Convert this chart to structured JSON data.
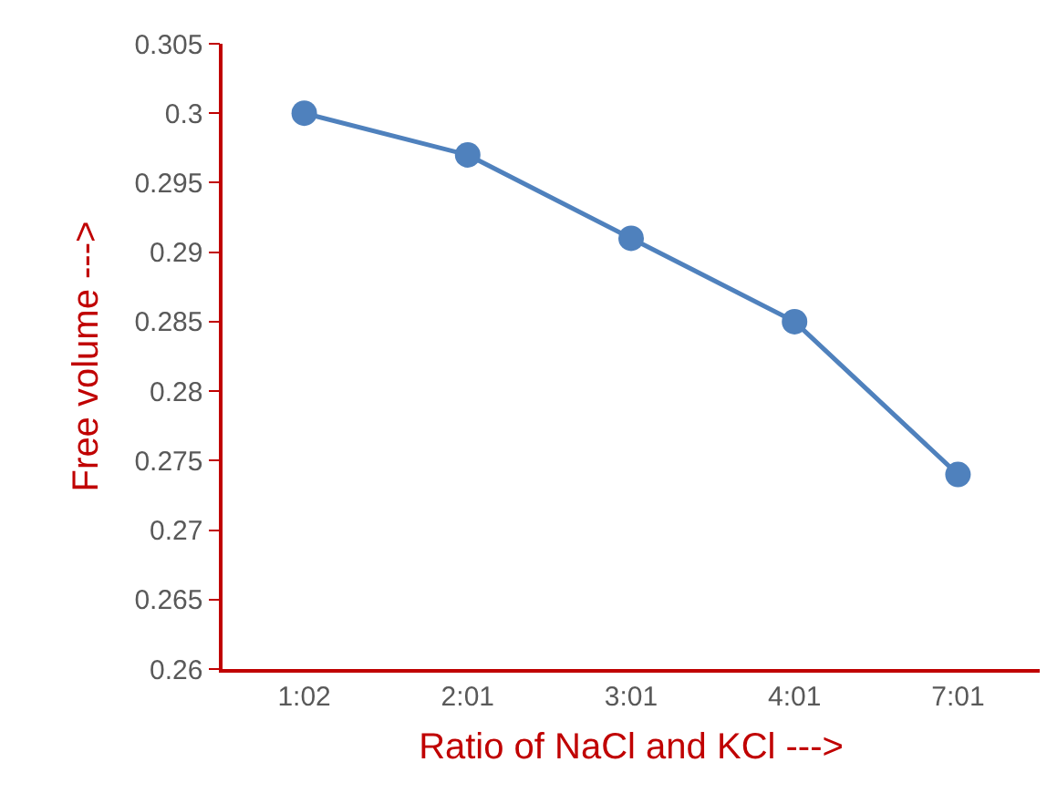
{
  "chart_data": {
    "type": "line",
    "xlabel": "Ratio of NaCl and KCl --->",
    "ylabel": "Free volume --->",
    "categories": [
      "1:02",
      "2:01",
      "3:01",
      "4:01",
      "7:01"
    ],
    "series": [
      {
        "color": "#4f81bd",
        "values": [
          0.3,
          0.297,
          0.291,
          0.285,
          0.274
        ]
      }
    ],
    "ylim": [
      0.26,
      0.305
    ],
    "yticks": [
      0.26,
      0.265,
      0.27,
      0.275,
      0.28,
      0.285,
      0.29,
      0.295,
      0.3,
      0.305
    ],
    "grid": false,
    "legend": false,
    "marker": "circle",
    "line_style": "solid"
  }
}
